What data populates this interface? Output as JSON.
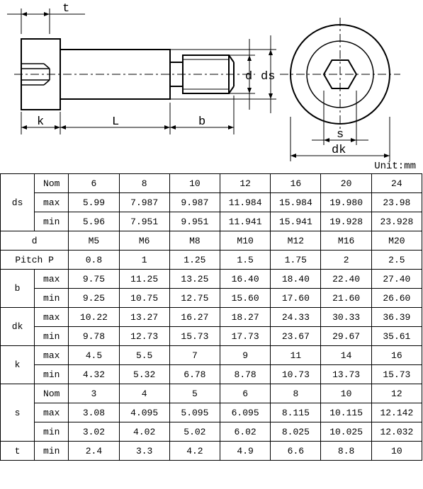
{
  "unit_text": "Unit:mm",
  "diagram": {
    "labels": {
      "t": "t",
      "k": "k",
      "L": "L",
      "b": "b",
      "d": "d",
      "ds": "ds",
      "s": "s",
      "dk": "dk"
    },
    "stroke": "#000000",
    "fill_hatch": "#000000",
    "bg": "#ffffff"
  },
  "columns": [
    "6",
    "8",
    "10",
    "12",
    "16",
    "20",
    "24"
  ],
  "rows": [
    {
      "label": "ds",
      "subs": [
        {
          "sub": "Nom",
          "vals": [
            "6",
            "8",
            "10",
            "12",
            "16",
            "20",
            "24"
          ]
        },
        {
          "sub": "max",
          "vals": [
            "5.99",
            "7.987",
            "9.987",
            "11.984",
            "15.984",
            "19.980",
            "23.98"
          ]
        },
        {
          "sub": "min",
          "vals": [
            "5.96",
            "7.951",
            "9.951",
            "11.941",
            "15.941",
            "19.928",
            "23.928"
          ]
        }
      ]
    },
    {
      "label": "d",
      "span": true,
      "vals": [
        "M5",
        "M6",
        "M8",
        "M10",
        "M12",
        "M16",
        "M20"
      ]
    },
    {
      "label": "Pitch  P",
      "span": true,
      "vals": [
        "0.8",
        "1",
        "1.25",
        "1.5",
        "1.75",
        "2",
        "2.5"
      ]
    },
    {
      "label": "b",
      "subs": [
        {
          "sub": "max",
          "vals": [
            "9.75",
            "11.25",
            "13.25",
            "16.40",
            "18.40",
            "22.40",
            "27.40"
          ]
        },
        {
          "sub": "min",
          "vals": [
            "9.25",
            "10.75",
            "12.75",
            "15.60",
            "17.60",
            "21.60",
            "26.60"
          ]
        }
      ]
    },
    {
      "label": "dk",
      "subs": [
        {
          "sub": "max",
          "vals": [
            "10.22",
            "13.27",
            "16.27",
            "18.27",
            "24.33",
            "30.33",
            "36.39"
          ]
        },
        {
          "sub": "min",
          "vals": [
            "9.78",
            "12.73",
            "15.73",
            "17.73",
            "23.67",
            "29.67",
            "35.61"
          ]
        }
      ]
    },
    {
      "label": "k",
      "subs": [
        {
          "sub": "max",
          "vals": [
            "4.5",
            "5.5",
            "7",
            "9",
            "11",
            "14",
            "16"
          ]
        },
        {
          "sub": "min",
          "vals": [
            "4.32",
            "5.32",
            "6.78",
            "8.78",
            "10.73",
            "13.73",
            "15.73"
          ]
        }
      ]
    },
    {
      "label": "s",
      "subs": [
        {
          "sub": "Nom",
          "vals": [
            "3",
            "4",
            "5",
            "6",
            "8",
            "10",
            "12"
          ]
        },
        {
          "sub": "max",
          "vals": [
            "3.08",
            "4.095",
            "5.095",
            "6.095",
            "8.115",
            "10.115",
            "12.142"
          ]
        },
        {
          "sub": "min",
          "vals": [
            "3.02",
            "4.02",
            "5.02",
            "6.02",
            "8.025",
            "10.025",
            "12.032"
          ]
        }
      ]
    },
    {
      "label": "t",
      "subs": [
        {
          "sub": "min",
          "vals": [
            "2.4",
            "3.3",
            "4.2",
            "4.9",
            "6.6",
            "8.8",
            "10"
          ]
        }
      ]
    }
  ]
}
